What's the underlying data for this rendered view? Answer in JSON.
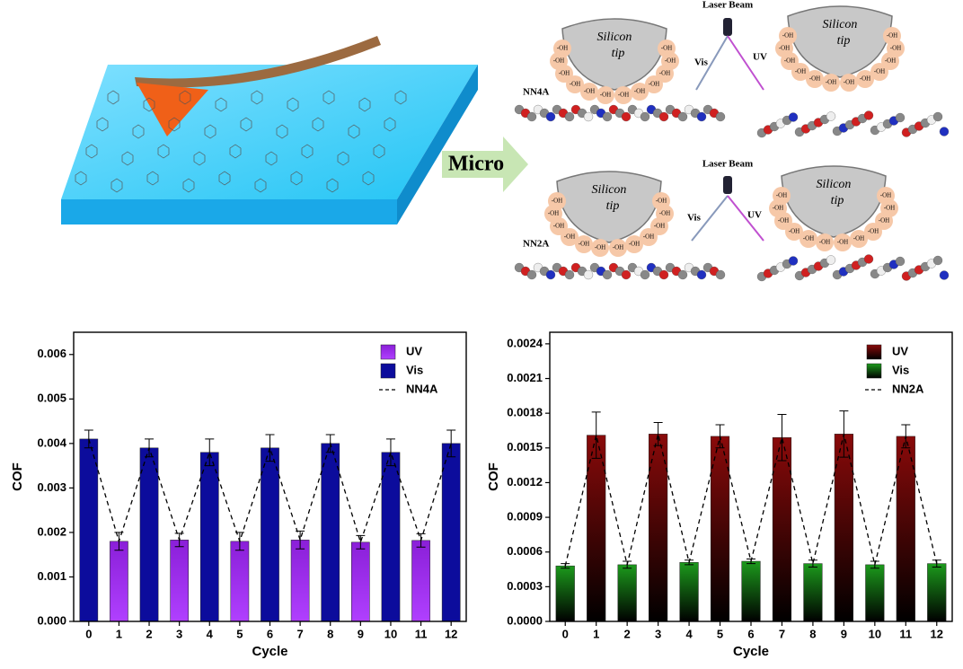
{
  "schematic": {
    "arrow_label": "Micro",
    "laser_label": "Laser Beam",
    "tip_line1": "Silicon",
    "tip_line2": "tip",
    "oh": "-OH",
    "vis": "Vis",
    "uv": "UV",
    "panels": [
      "NN4A",
      "NN2A"
    ]
  },
  "chart_data": [
    {
      "type": "bar",
      "xlabel": "Cycle",
      "ylabel": "COF",
      "categories": [
        "0",
        "1",
        "2",
        "3",
        "4",
        "5",
        "6",
        "7",
        "8",
        "9",
        "10",
        "11",
        "12"
      ],
      "series": [
        {
          "name": "UV",
          "color": "#8a1fd8",
          "values": [
            null,
            0.0018,
            null,
            0.00183,
            null,
            0.0018,
            null,
            0.00183,
            null,
            0.00178,
            null,
            0.00182,
            null
          ],
          "errors": [
            null,
            0.0002,
            null,
            0.00015,
            null,
            0.0002,
            null,
            0.0002,
            null,
            0.00015,
            null,
            0.00015,
            null
          ]
        },
        {
          "name": "Vis",
          "color": "#0c0c9c",
          "values": [
            0.0041,
            null,
            0.0039,
            null,
            0.0038,
            null,
            0.0039,
            null,
            0.004,
            null,
            0.0038,
            null,
            0.004
          ],
          "errors": [
            0.0002,
            null,
            0.0002,
            null,
            0.0003,
            null,
            0.0003,
            null,
            0.0002,
            null,
            0.0003,
            null,
            0.0003
          ]
        }
      ],
      "line": {
        "name": "NN4A",
        "style": "dashed",
        "color": "#000000"
      },
      "ylim": [
        0,
        0.0065
      ],
      "yticks": [
        {
          "value": 0,
          "label": "0.000"
        },
        {
          "value": 0.001,
          "label": "0.001"
        },
        {
          "value": 0.002,
          "label": "0.002"
        },
        {
          "value": 0.003,
          "label": "0.003"
        },
        {
          "value": 0.004,
          "label": "0.004"
        },
        {
          "value": 0.005,
          "label": "0.005"
        },
        {
          "value": 0.006,
          "label": "0.006"
        }
      ],
      "legend": "upper right",
      "gradient": "lighter-bottom"
    },
    {
      "type": "bar",
      "xlabel": "Cycle",
      "ylabel": "COF",
      "categories": [
        "0",
        "1",
        "2",
        "3",
        "4",
        "5",
        "6",
        "7",
        "8",
        "9",
        "10",
        "11",
        "12"
      ],
      "series": [
        {
          "name": "UV",
          "color": "#8a0a0a",
          "values": [
            null,
            0.00161,
            null,
            0.00162,
            null,
            0.0016,
            null,
            0.00159,
            null,
            0.00162,
            null,
            0.0016,
            null
          ],
          "errors": [
            null,
            0.0002,
            null,
            0.0001,
            null,
            0.0001,
            null,
            0.0002,
            null,
            0.0002,
            null,
            0.0001,
            null
          ]
        },
        {
          "name": "Vis",
          "color": "#1c9a1c",
          "values": [
            0.00048,
            null,
            0.00049,
            null,
            0.00051,
            null,
            0.00052,
            null,
            0.0005,
            null,
            0.00049,
            null,
            0.0005
          ],
          "errors": [
            2e-05,
            null,
            3e-05,
            null,
            2e-05,
            null,
            2e-05,
            null,
            3e-05,
            null,
            3e-05,
            null,
            3e-05
          ]
        }
      ],
      "line": {
        "name": "NN2A",
        "style": "dashed",
        "color": "#000000"
      },
      "ylim": [
        0,
        0.0025
      ],
      "yticks": [
        {
          "value": 0,
          "label": "0.0000"
        },
        {
          "value": 0.0003,
          "label": "0.0003"
        },
        {
          "value": 0.0006,
          "label": "0.0006"
        },
        {
          "value": 0.0009,
          "label": "0.0009"
        },
        {
          "value": 0.0012,
          "label": "0.0012"
        },
        {
          "value": 0.0015,
          "label": "0.0015"
        },
        {
          "value": 0.0018,
          "label": "0.0018"
        },
        {
          "value": 0.0021,
          "label": "0.0021"
        },
        {
          "value": 0.0024,
          "label": "0.0024"
        }
      ],
      "legend": "upper right",
      "gradient": "black-bottom"
    }
  ]
}
